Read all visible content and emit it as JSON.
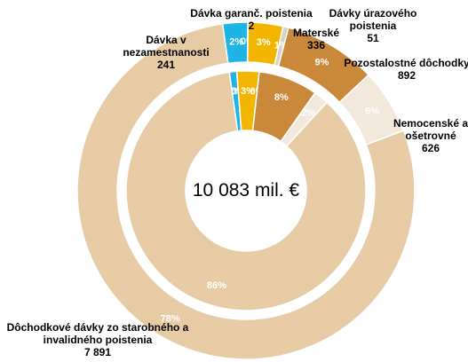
{
  "chart_data": {
    "type": "donut",
    "total_label": "10 083 mil. €",
    "categories": [
      "Dávka v nezamestnanosti",
      "Dávka garanč. poistenia",
      "Materské",
      "Dávky úrazového poistenia",
      "Pozostalostné dôchodky",
      "Nemocenské a ošetrovné",
      "Dôchodkové dávky zo starobného a invalidného poistenia"
    ],
    "values": [
      241,
      2,
      336,
      51,
      892,
      626,
      7891
    ],
    "value_labels": [
      "241",
      "2",
      "336",
      "51",
      "892",
      "626",
      "7 891"
    ],
    "percent_labels": [
      "2%",
      "0%",
      "3%",
      "1%",
      "9%",
      "6%",
      "78%"
    ],
    "colors": [
      "#1fb4e6",
      "#1f5f9f",
      "#f2b600",
      "#d6d0c6",
      "#c9883a",
      "#f3e8dc",
      "#e6cba5"
    ],
    "inner_values": [
      0,
      1,
      0,
      3,
      0,
      8,
      2,
      86
    ],
    "inner_labels": [
      "0%",
      "1%",
      "0%",
      "3%",
      "0%",
      "8%",
      "2%",
      "86%"
    ],
    "inner_colors": [
      "#1f4e79",
      "#1fb4e6",
      "#1f5f9f",
      "#f2b600",
      "#d6d0c6",
      "#c9883a",
      "#f3e8dc",
      "#e6cba5"
    ]
  }
}
